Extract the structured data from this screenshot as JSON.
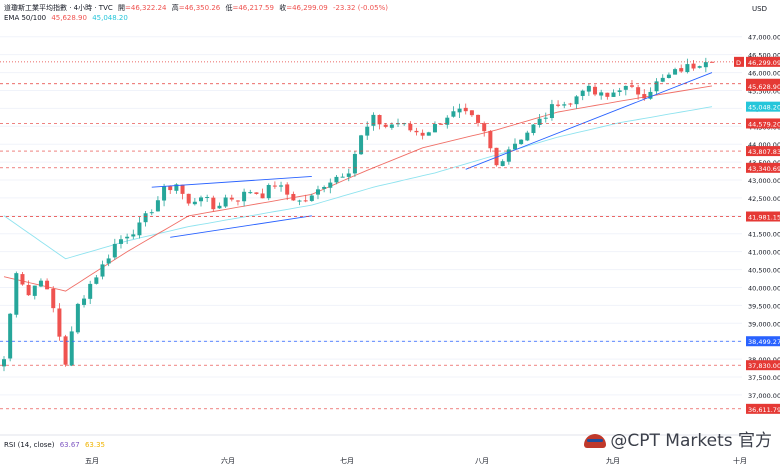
{
  "header": {
    "symbol": "道瓊斯工業平均指數 · 4小時 · TVC",
    "open_label": "開",
    "open": "=46,322.24",
    "high_label": "高",
    "high": "=46,350.26",
    "low_label": "低",
    "low": "=46,217.59",
    "close_label": "收",
    "close": "=46,299.09",
    "change": "-23.32 (-0.05%)",
    "ema_label": "EMA 50/100",
    "ema50_value": "45,628.90",
    "ema100_value": "45,048.20"
  },
  "currency": "USD",
  "rsi_label": "RSI (14, close)",
  "rsi_value1": "63.67",
  "rsi_value2": "63.35",
  "watermark": "@CPT Markets 官方",
  "colors": {
    "up": "#26a69a",
    "down": "#ef5350",
    "ema50": "#f07068",
    "ema100": "#8fe3ef",
    "trend": "#2962ff",
    "red_level": "#e53935",
    "blue_level": "#2962ff"
  },
  "chart_data": {
    "type": "candlestick",
    "title": "道瓊斯工業平均指數 · 4小時 · TVC",
    "ylim": [
      36300,
      47300
    ],
    "y_ticks": [
      37000,
      37500,
      38000,
      38500,
      39000,
      39500,
      40000,
      40500,
      41000,
      41500,
      42000,
      42500,
      43000,
      43500,
      44000,
      44500,
      45000,
      45500,
      46000,
      46500,
      47000
    ],
    "y_tick_labels": [
      "37,000.00",
      "37,500.00",
      "38,000.00",
      "38,500.00",
      "39,000.00",
      "39,500.00",
      "40,000.00",
      "40,500.00",
      "41,000.00",
      "41,500.00",
      "42,000.00",
      "42,500.00",
      "43,000.00",
      "43,500.00",
      "44,000.00",
      "44,500.00",
      "45,000.00",
      "45,500.00",
      "46,000.00",
      "46,500.00",
      "47,000.00"
    ],
    "x_labels": [
      "五月",
      "六月",
      "七月",
      "八月",
      "九月",
      "十月"
    ],
    "price_levels": [
      {
        "value": 46299.09,
        "label": "46,299.09",
        "color": "#e53935",
        "style": "dotted",
        "tag": "D"
      },
      {
        "value": 45687.58,
        "label": "45,687.58",
        "color": "#e53935",
        "style": "dashed"
      },
      {
        "value": 45628.9,
        "label": "45,628.90",
        "color": "#e53935",
        "style": "none"
      },
      {
        "value": 45048.2,
        "label": "45,048.20",
        "color": "#26c6da",
        "style": "none"
      },
      {
        "value": 44579.2,
        "label": "44,579.20",
        "color": "#e53935",
        "style": "dashed"
      },
      {
        "value": 43807.83,
        "label": "43,807.83",
        "color": "#e53935",
        "style": "dashed"
      },
      {
        "value": 43340.69,
        "label": "43,340.69",
        "color": "#e53935",
        "style": "dashed"
      },
      {
        "value": 41981.15,
        "label": "41,981.15",
        "color": "#e53935",
        "style": "dashed"
      },
      {
        "value": 38499.27,
        "label": "38,499.27",
        "color": "#2962ff",
        "style": "dashed"
      },
      {
        "value": 37830.0,
        "label": "37,830.00",
        "color": "#e53935",
        "style": "dashed"
      },
      {
        "value": 36611.79,
        "label": "36,611.79",
        "color": "#e53935",
        "style": "dashed"
      }
    ],
    "anchors": [
      [
        0,
        38000
      ],
      [
        2,
        40500
      ],
      [
        4,
        39800
      ],
      [
        6,
        40300
      ],
      [
        8,
        39400
      ],
      [
        10,
        37900
      ],
      [
        12,
        39500
      ],
      [
        14,
        40100
      ],
      [
        16,
        40600
      ],
      [
        18,
        41200
      ],
      [
        20,
        41500
      ],
      [
        22,
        41700
      ],
      [
        24,
        42200
      ],
      [
        26,
        42700
      ],
      [
        28,
        42900
      ],
      [
        30,
        42300
      ],
      [
        32,
        42600
      ],
      [
        34,
        42200
      ],
      [
        36,
        42500
      ],
      [
        38,
        42500
      ],
      [
        40,
        42700
      ],
      [
        42,
        42600
      ],
      [
        44,
        42900
      ],
      [
        46,
        42600
      ],
      [
        48,
        42400
      ],
      [
        50,
        42500
      ],
      [
        52,
        42900
      ],
      [
        54,
        43100
      ],
      [
        56,
        43300
      ],
      [
        58,
        44200
      ],
      [
        60,
        44700
      ],
      [
        62,
        44500
      ],
      [
        64,
        44600
      ],
      [
        66,
        44400
      ],
      [
        68,
        44300
      ],
      [
        70,
        44500
      ],
      [
        72,
        44800
      ],
      [
        74,
        44900
      ],
      [
        76,
        44700
      ],
      [
        78,
        44300
      ],
      [
        80,
        43400
      ],
      [
        82,
        43900
      ],
      [
        84,
        44200
      ],
      [
        86,
        44500
      ],
      [
        88,
        44800
      ],
      [
        90,
        45200
      ],
      [
        92,
        45100
      ],
      [
        94,
        45600
      ],
      [
        96,
        45400
      ],
      [
        98,
        45300
      ],
      [
        100,
        45600
      ],
      [
        102,
        45500
      ],
      [
        104,
        45400
      ],
      [
        106,
        45700
      ],
      [
        108,
        45900
      ],
      [
        110,
        46100
      ],
      [
        112,
        46200
      ],
      [
        114,
        46400
      ],
      [
        115,
        46299
      ]
    ],
    "n_bars": 116,
    "ema50": [
      [
        0,
        40300
      ],
      [
        10,
        39900
      ],
      [
        20,
        41000
      ],
      [
        30,
        42000
      ],
      [
        40,
        42300
      ],
      [
        50,
        42600
      ],
      [
        58,
        43200
      ],
      [
        68,
        43900
      ],
      [
        80,
        44400
      ],
      [
        90,
        44900
      ],
      [
        100,
        45200
      ],
      [
        115,
        45628.9
      ]
    ],
    "ema100": [
      [
        0,
        42000
      ],
      [
        10,
        40800
      ],
      [
        20,
        41300
      ],
      [
        30,
        41700
      ],
      [
        40,
        42000
      ],
      [
        50,
        42300
      ],
      [
        60,
        42800
      ],
      [
        70,
        43200
      ],
      [
        80,
        43700
      ],
      [
        90,
        44200
      ],
      [
        100,
        44600
      ],
      [
        115,
        45048.2
      ]
    ],
    "trendlines": [
      {
        "from": [
          24,
          42800
        ],
        "to": [
          50,
          43100
        ]
      },
      {
        "from": [
          27,
          41400
        ],
        "to": [
          50,
          42000
        ]
      },
      {
        "from": [
          75,
          43300
        ],
        "to": [
          115,
          46000
        ]
      }
    ]
  }
}
